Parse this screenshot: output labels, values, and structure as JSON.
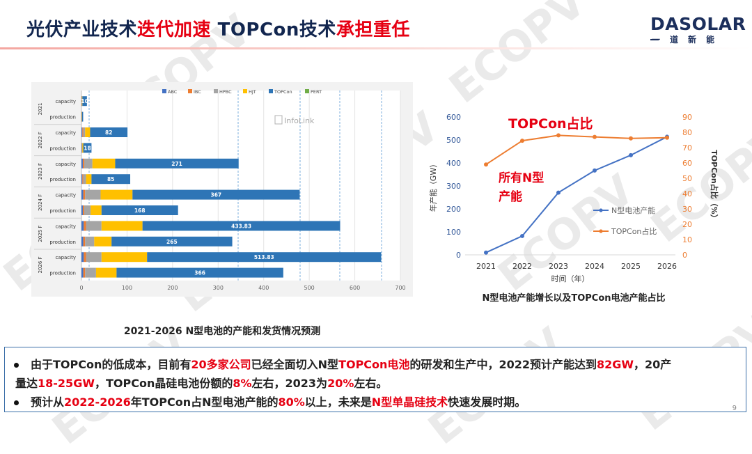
{
  "header": {
    "title_parts": [
      {
        "text": "光伏产业技术",
        "color": "blk"
      },
      {
        "text": "迭代加速",
        "color": "red"
      },
      {
        "text": " TOPCon技术",
        "color": "blk"
      },
      {
        "text": "承担重任",
        "color": "red"
      }
    ],
    "logo_main": "DASOLAR",
    "logo_sub": "一道新能"
  },
  "watermark": "ECOPV",
  "chart_left": {
    "type": "bar",
    "orientation": "horizontal-stacked",
    "legend": [
      "ABC",
      "IBC",
      "HPBC",
      "HJT",
      "TOPCon",
      "PERT"
    ],
    "series_colors": {
      "ABC": "#4472c4",
      "IBC": "#ed7d31",
      "HPBC": "#a5a5a5",
      "HJT": "#ffc000",
      "TOPCon": "#2e75b6",
      "PERT": "#70ad47"
    },
    "inset_label": "InfoLink",
    "years": [
      "2021",
      "2022 F",
      "2023 F",
      "2024 F",
      "2025 F",
      "2026 F"
    ],
    "rows": [
      {
        "year": "2021",
        "label": "capacity",
        "segments": {
          "ABC": 0.5,
          "IBC": 0.5,
          "HPBC": 0,
          "HJT": 1,
          "TOPCon": 10,
          "PERT": 0
        },
        "topcon_label": "10"
      },
      {
        "year": "2021",
        "label": "production",
        "segments": {
          "ABC": 0.3,
          "IBC": 0.3,
          "HPBC": 0,
          "HJT": 0.6,
          "TOPCon": 2.5,
          "PERT": 0
        },
        "topcon_label": ""
      },
      {
        "year": "2022 F",
        "label": "capacity",
        "segments": {
          "ABC": 2,
          "IBC": 2,
          "HPBC": 4,
          "HJT": 11,
          "TOPCon": 82,
          "PERT": 0
        },
        "topcon_label": "82"
      },
      {
        "year": "2022 F",
        "label": "production",
        "segments": {
          "ABC": 1,
          "IBC": 0.5,
          "HPBC": 0.5,
          "HJT": 2,
          "TOPCon": 18,
          "PERT": 0
        },
        "topcon_label": "18"
      },
      {
        "year": "2023 F",
        "label": "capacity",
        "segments": {
          "ABC": 3,
          "IBC": 3,
          "HPBC": 18,
          "HJT": 50,
          "TOPCon": 271,
          "PERT": 0
        },
        "topcon_label": "271"
      },
      {
        "year": "2023 F",
        "label": "production",
        "segments": {
          "ABC": 2,
          "IBC": 2,
          "HPBC": 6,
          "HJT": 12,
          "TOPCon": 85,
          "PERT": 0
        },
        "topcon_label": "85"
      },
      {
        "year": "2024 F",
        "label": "capacity",
        "segments": {
          "ABC": 4,
          "IBC": 4,
          "HPBC": 34,
          "HJT": 70,
          "TOPCon": 367,
          "PERT": 0
        },
        "topcon_label": "367"
      },
      {
        "year": "2024 F",
        "label": "production",
        "segments": {
          "ABC": 3,
          "IBC": 3,
          "HPBC": 14,
          "HJT": 24,
          "TOPCon": 168,
          "PERT": 0
        },
        "topcon_label": "168"
      },
      {
        "year": "2025 F",
        "label": "capacity",
        "segments": {
          "ABC": 5,
          "IBC": 5,
          "HPBC": 34,
          "HJT": 90,
          "TOPCon": 433.83,
          "PERT": 0
        },
        "topcon_label": "433.83"
      },
      {
        "year": "2025 F",
        "label": "production",
        "segments": {
          "ABC": 4,
          "IBC": 4,
          "HPBC": 20,
          "HJT": 38,
          "TOPCon": 265,
          "PERT": 0
        },
        "topcon_label": "265"
      },
      {
        "year": "2026 F",
        "label": "capacity",
        "segments": {
          "ABC": 5,
          "IBC": 5,
          "HPBC": 34,
          "HJT": 100,
          "TOPCon": 513.83,
          "PERT": 0
        },
        "topcon_label": "513.83"
      },
      {
        "year": "2026 F",
        "label": "production",
        "segments": {
          "ABC": 4,
          "IBC": 4,
          "HPBC": 24,
          "HJT": 45,
          "TOPCon": 366,
          "PERT": 0
        },
        "topcon_label": "366"
      }
    ],
    "x_ticks": [
      0,
      100,
      200,
      300,
      400,
      500,
      600,
      700
    ],
    "xlim": [
      0,
      700
    ],
    "caption": "2021-2026  N型电池的产能和发货情况预测"
  },
  "chart_data": {
    "type": "line",
    "x": [
      "2021",
      "2022",
      "2023",
      "2024",
      "2025",
      "2026"
    ],
    "series": [
      {
        "name": "N型电池产能",
        "axis": "left",
        "color": "#4472c4",
        "values": [
          10,
          82,
          271,
          367,
          433.83,
          513.83
        ]
      },
      {
        "name": "TOPCon占比",
        "axis": "right",
        "color": "#ed7d31",
        "values": [
          59,
          74.5,
          78,
          77,
          76,
          76.5
        ]
      }
    ],
    "ylabel": "年产能（GW）",
    "y2label": "TOPCon占比（%）",
    "xlabel": "时间（年）",
    "ylim": [
      0,
      600
    ],
    "y_ticks": [
      0,
      100,
      200,
      300,
      400,
      500,
      600
    ],
    "y2lim": [
      0,
      90
    ],
    "y2_ticks": [
      0,
      10,
      20,
      30,
      40,
      50,
      60,
      70,
      80,
      90
    ],
    "legend_position": "center-right",
    "annotations": [
      "TOPCon占比",
      "所有N型",
      "产能"
    ],
    "caption": "N型电池产能增长以及TOPCon电池产能占比"
  },
  "bullets": [
    {
      "lines": [
        [
          {
            "t": "由于TOPCon的低成本，目前有"
          },
          {
            "t": "20多家公司",
            "red": true
          },
          {
            "t": "已经全面切入N型"
          },
          {
            "t": "TOPCon电池",
            "red": true
          },
          {
            "t": "的研发和生产中，2022预计产能达到"
          },
          {
            "t": "82GW",
            "red": true
          },
          {
            "t": "，20产"
          }
        ],
        [
          {
            "t": "量达"
          },
          {
            "t": "18-25GW",
            "red": true
          },
          {
            "t": "，TOPCon晶硅电池份额的"
          },
          {
            "t": "8%",
            "red": true
          },
          {
            "t": "左右，2023为"
          },
          {
            "t": "20%",
            "red": true
          },
          {
            "t": "左右。"
          }
        ]
      ]
    },
    {
      "lines": [
        [
          {
            "t": "预计从"
          },
          {
            "t": "2022-2026",
            "red": true
          },
          {
            "t": "年TOPCon占N型电池产能的"
          },
          {
            "t": "80%",
            "red": true
          },
          {
            "t": "以上，未来是"
          },
          {
            "t": "N型单晶硅技术",
            "red": true
          },
          {
            "t": "快速发展时期。"
          }
        ]
      ]
    }
  ],
  "page_number": "9"
}
